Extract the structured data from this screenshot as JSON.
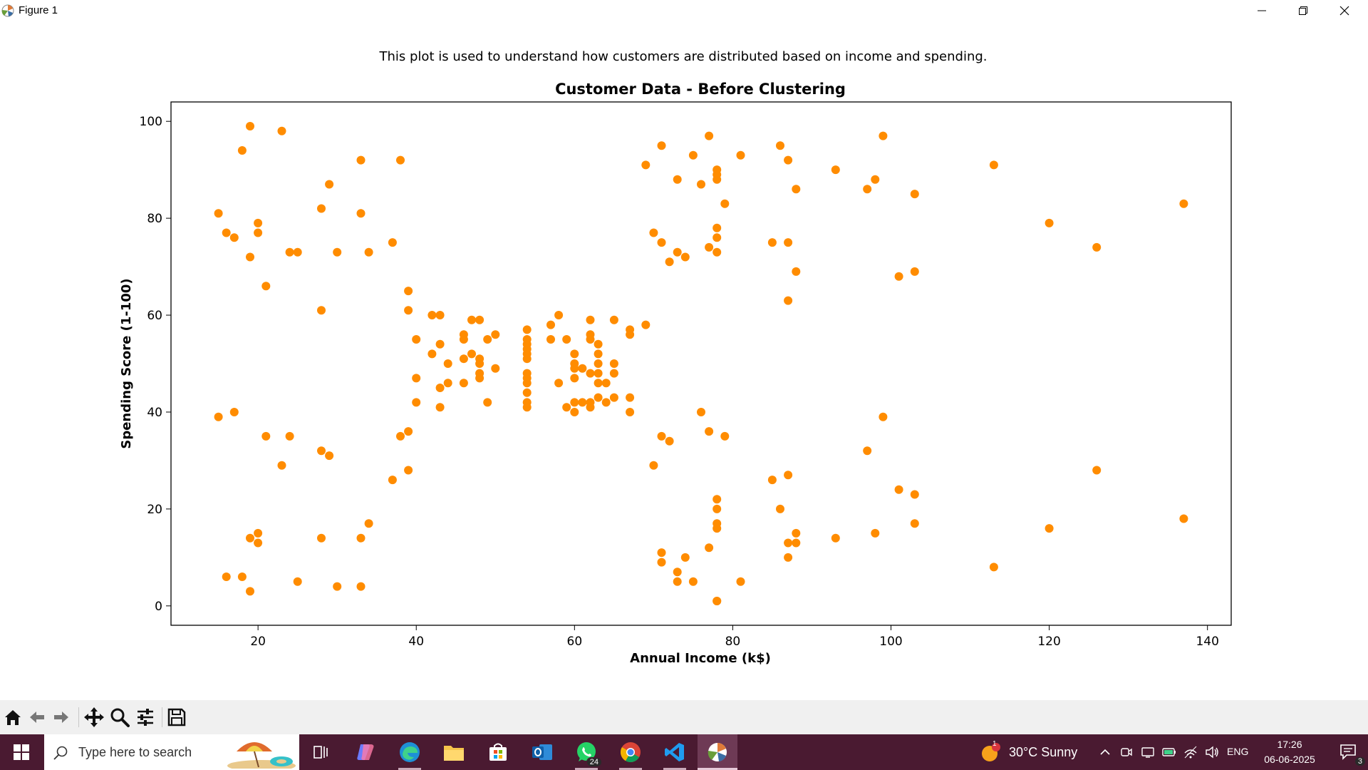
{
  "window": {
    "title": "Figure 1"
  },
  "figure": {
    "suptitle": "This plot is used to understand how customers are distributed based on income and spending."
  },
  "chart_data": {
    "type": "scatter",
    "title": "Customer Data - Before Clustering",
    "xlabel": "Annual Income (k$)",
    "ylabel": "Spending Score (1-100)",
    "xlim": [
      9,
      143
    ],
    "ylim": [
      -4,
      104
    ],
    "xticks": [
      20,
      40,
      60,
      80,
      100,
      120,
      140
    ],
    "yticks": [
      0,
      20,
      40,
      60,
      80,
      100
    ],
    "grid": false,
    "color": "#ff8c00",
    "points": [
      [
        15,
        39
      ],
      [
        15,
        81
      ],
      [
        16,
        6
      ],
      [
        16,
        77
      ],
      [
        17,
        40
      ],
      [
        17,
        76
      ],
      [
        18,
        6
      ],
      [
        18,
        94
      ],
      [
        19,
        3
      ],
      [
        19,
        72
      ],
      [
        19,
        14
      ],
      [
        19,
        99
      ],
      [
        20,
        15
      ],
      [
        20,
        77
      ],
      [
        20,
        13
      ],
      [
        20,
        79
      ],
      [
        21,
        35
      ],
      [
        21,
        66
      ],
      [
        23,
        29
      ],
      [
        23,
        98
      ],
      [
        24,
        35
      ],
      [
        24,
        73
      ],
      [
        25,
        5
      ],
      [
        25,
        73
      ],
      [
        28,
        14
      ],
      [
        28,
        82
      ],
      [
        28,
        32
      ],
      [
        28,
        61
      ],
      [
        29,
        31
      ],
      [
        29,
        87
      ],
      [
        30,
        4
      ],
      [
        30,
        73
      ],
      [
        33,
        4
      ],
      [
        33,
        92
      ],
      [
        33,
        14
      ],
      [
        33,
        81
      ],
      [
        34,
        17
      ],
      [
        34,
        73
      ],
      [
        37,
        26
      ],
      [
        37,
        75
      ],
      [
        38,
        35
      ],
      [
        38,
        92
      ],
      [
        39,
        36
      ],
      [
        39,
        61
      ],
      [
        39,
        28
      ],
      [
        39,
        65
      ],
      [
        40,
        55
      ],
      [
        40,
        47
      ],
      [
        40,
        42
      ],
      [
        42,
        52
      ],
      [
        42,
        60
      ],
      [
        43,
        54
      ],
      [
        43,
        60
      ],
      [
        43,
        45
      ],
      [
        43,
        41
      ],
      [
        44,
        50
      ],
      [
        44,
        46
      ],
      [
        46,
        51
      ],
      [
        46,
        46
      ],
      [
        46,
        56
      ],
      [
        46,
        55
      ],
      [
        47,
        52
      ],
      [
        47,
        59
      ],
      [
        48,
        51
      ],
      [
        48,
        59
      ],
      [
        48,
        50
      ],
      [
        48,
        48
      ],
      [
        48,
        47
      ],
      [
        49,
        55
      ],
      [
        49,
        42
      ],
      [
        50,
        49
      ],
      [
        50,
        56
      ],
      [
        54,
        47
      ],
      [
        54,
        54
      ],
      [
        54,
        53
      ],
      [
        54,
        48
      ],
      [
        54,
        52
      ],
      [
        54,
        42
      ],
      [
        54,
        51
      ],
      [
        54,
        55
      ],
      [
        54,
        41
      ],
      [
        54,
        44
      ],
      [
        54,
        57
      ],
      [
        54,
        46
      ],
      [
        57,
        58
      ],
      [
        57,
        55
      ],
      [
        58,
        60
      ],
      [
        58,
        46
      ],
      [
        59,
        55
      ],
      [
        59,
        41
      ],
      [
        60,
        49
      ],
      [
        60,
        40
      ],
      [
        60,
        42
      ],
      [
        60,
        52
      ],
      [
        60,
        47
      ],
      [
        60,
        50
      ],
      [
        61,
        42
      ],
      [
        61,
        49
      ],
      [
        62,
        41
      ],
      [
        62,
        48
      ],
      [
        62,
        59
      ],
      [
        62,
        55
      ],
      [
        62,
        56
      ],
      [
        62,
        42
      ],
      [
        63,
        50
      ],
      [
        63,
        46
      ],
      [
        63,
        43
      ],
      [
        63,
        48
      ],
      [
        63,
        52
      ],
      [
        63,
        54
      ],
      [
        64,
        42
      ],
      [
        64,
        46
      ],
      [
        65,
        48
      ],
      [
        65,
        50
      ],
      [
        65,
        43
      ],
      [
        65,
        59
      ],
      [
        67,
        43
      ],
      [
        67,
        57
      ],
      [
        67,
        56
      ],
      [
        67,
        40
      ],
      [
        69,
        58
      ],
      [
        69,
        91
      ],
      [
        70,
        29
      ],
      [
        70,
        77
      ],
      [
        71,
        35
      ],
      [
        71,
        95
      ],
      [
        71,
        11
      ],
      [
        71,
        75
      ],
      [
        71,
        9
      ],
      [
        72,
        34
      ],
      [
        72,
        71
      ],
      [
        73,
        5
      ],
      [
        73,
        88
      ],
      [
        73,
        7
      ],
      [
        73,
        73
      ],
      [
        74,
        10
      ],
      [
        74,
        72
      ],
      [
        75,
        5
      ],
      [
        75,
        93
      ],
      [
        76,
        40
      ],
      [
        76,
        87
      ],
      [
        77,
        12
      ],
      [
        77,
        97
      ],
      [
        77,
        36
      ],
      [
        77,
        74
      ],
      [
        78,
        22
      ],
      [
        78,
        90
      ],
      [
        78,
        17
      ],
      [
        78,
        88
      ],
      [
        78,
        20
      ],
      [
        78,
        76
      ],
      [
        78,
        16
      ],
      [
        78,
        89
      ],
      [
        78,
        1
      ],
      [
        78,
        78
      ],
      [
        78,
        1
      ],
      [
        78,
        73
      ],
      [
        79,
        35
      ],
      [
        79,
        83
      ],
      [
        81,
        5
      ],
      [
        81,
        93
      ],
      [
        85,
        26
      ],
      [
        85,
        75
      ],
      [
        86,
        20
      ],
      [
        86,
        95
      ],
      [
        87,
        27
      ],
      [
        87,
        63
      ],
      [
        87,
        13
      ],
      [
        87,
        75
      ],
      [
        87,
        10
      ],
      [
        87,
        92
      ],
      [
        88,
        13
      ],
      [
        88,
        86
      ],
      [
        88,
        15
      ],
      [
        88,
        69
      ],
      [
        93,
        14
      ],
      [
        93,
        90
      ],
      [
        97,
        32
      ],
      [
        97,
        86
      ],
      [
        98,
        15
      ],
      [
        98,
        88
      ],
      [
        99,
        39
      ],
      [
        99,
        97
      ],
      [
        101,
        24
      ],
      [
        101,
        68
      ],
      [
        103,
        17
      ],
      [
        103,
        85
      ],
      [
        103,
        23
      ],
      [
        103,
        69
      ],
      [
        113,
        8
      ],
      [
        113,
        91
      ],
      [
        120,
        16
      ],
      [
        120,
        79
      ],
      [
        126,
        28
      ],
      [
        126,
        74
      ],
      [
        137,
        18
      ],
      [
        137,
        83
      ]
    ]
  },
  "toolbar": {
    "buttons": [
      "home-icon",
      "back-arrow-icon",
      "forward-arrow-icon",
      "pan-move-icon",
      "zoom-magnifier-icon",
      "configure-subplots-icon",
      "save-figure-icon"
    ]
  },
  "taskbar": {
    "search_placeholder": "Type here to search",
    "whatsapp_badge": "24",
    "weather_text": "30°C  Sunny",
    "weather_badge": "1",
    "language": "ENG",
    "time": "17:26",
    "date": "06-06-2025",
    "notification_count": "3"
  }
}
